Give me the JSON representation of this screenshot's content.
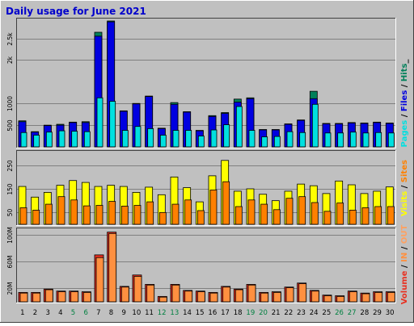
{
  "title": "Daily usage for June 2021",
  "colors": {
    "background": "#c0c0c0",
    "title": "#0000cc",
    "hits": "#00805a",
    "files": "#0000e0",
    "pages": "#00e0e0",
    "visits": "#ffff00",
    "sites": "#ff8000",
    "volume": "#e83020",
    "volume_in": "#ff9040",
    "volume_out": "#ffa060",
    "weekend": "#008040",
    "weekday": "#000000"
  },
  "chart_data": [
    {
      "type": "bar",
      "name": "hits-files-pages",
      "x": [
        1,
        2,
        3,
        4,
        5,
        6,
        7,
        8,
        9,
        10,
        11,
        12,
        13,
        14,
        15,
        16,
        17,
        18,
        19,
        20,
        21,
        22,
        23,
        24,
        25,
        26,
        27,
        28,
        29,
        30
      ],
      "ylim": [
        0,
        2900
      ],
      "yticks": [
        500,
        1000,
        2000,
        2500
      ],
      "ytick_labels": [
        "500",
        "1000",
        "2k",
        "2.5k"
      ],
      "legend": [
        "Pages",
        "Files",
        "Hits"
      ],
      "side_label": "Pages / Files / Hits_",
      "series": [
        {
          "name": "Hits",
          "values": [
            600,
            350,
            500,
            520,
            570,
            580,
            2640,
            2900,
            830,
            1000,
            1170,
            430,
            1020,
            810,
            380,
            720,
            790,
            1100,
            1130,
            400,
            400,
            530,
            620,
            1280,
            540,
            540,
            560,
            550,
            570,
            550
          ]
        },
        {
          "name": "Files",
          "values": [
            580,
            340,
            490,
            500,
            560,
            560,
            2550,
            2880,
            820,
            990,
            1160,
            420,
            980,
            800,
            370,
            700,
            770,
            1030,
            1110,
            390,
            390,
            520,
            610,
            1110,
            530,
            530,
            550,
            540,
            560,
            540
          ]
        },
        {
          "name": "Pages",
          "values": [
            330,
            270,
            340,
            370,
            360,
            350,
            1130,
            1050,
            380,
            470,
            420,
            270,
            380,
            380,
            250,
            390,
            510,
            930,
            380,
            230,
            240,
            350,
            330,
            980,
            320,
            320,
            340,
            320,
            330,
            320
          ]
        }
      ]
    },
    {
      "type": "bar",
      "name": "visits-sites",
      "x": [
        1,
        2,
        3,
        4,
        5,
        6,
        7,
        8,
        9,
        10,
        11,
        12,
        13,
        14,
        15,
        16,
        17,
        18,
        19,
        20,
        21,
        22,
        23,
        24,
        25,
        26,
        27,
        28,
        29,
        30
      ],
      "ylim": [
        0,
        300
      ],
      "yticks": [
        50,
        150,
        250
      ],
      "ytick_labels": [
        "50",
        "150",
        "250"
      ],
      "legend": [
        "Visits",
        "Sites"
      ],
      "side_label": "Visits / Sites",
      "series": [
        {
          "name": "Visits",
          "values": [
            160,
            115,
            135,
            165,
            185,
            177,
            160,
            165,
            160,
            135,
            157,
            125,
            200,
            155,
            95,
            205,
            270,
            140,
            150,
            127,
            100,
            140,
            170,
            163,
            130,
            183,
            167,
            130,
            140,
            158
          ]
        },
        {
          "name": "Sites",
          "values": [
            70,
            60,
            85,
            117,
            103,
            78,
            80,
            97,
            77,
            80,
            95,
            50,
            85,
            103,
            58,
            145,
            180,
            75,
            103,
            85,
            62,
            110,
            117,
            92,
            55,
            90,
            60,
            70,
            75,
            75
          ]
        }
      ]
    },
    {
      "type": "bar",
      "name": "volume",
      "x": [
        1,
        2,
        3,
        4,
        5,
        6,
        7,
        8,
        9,
        10,
        11,
        12,
        13,
        14,
        15,
        16,
        17,
        18,
        19,
        20,
        21,
        22,
        23,
        24,
        25,
        26,
        27,
        28,
        29,
        30
      ],
      "ylim": [
        0,
        106
      ],
      "yticks": [
        20,
        60,
        100
      ],
      "ytick_labels": [
        "20M",
        "60M",
        "100M"
      ],
      "legend": [
        "Volume",
        "IN",
        "OUT"
      ],
      "side_label": "Volume / IN / OUT",
      "series": [
        {
          "name": "Volume",
          "values": [
            14,
            14,
            19,
            16,
            16,
            15,
            70,
            104,
            23,
            40,
            26,
            8,
            26,
            17,
            16,
            14,
            23,
            19,
            26,
            14,
            15,
            22,
            28,
            17,
            10,
            9,
            16,
            13,
            15,
            15
          ]
        },
        {
          "name": "OUT",
          "values": [
            13,
            13,
            18,
            15,
            15,
            14,
            66,
            102,
            22,
            38,
            25,
            7,
            25,
            16,
            15,
            13,
            22,
            18,
            25,
            13,
            14,
            21,
            27,
            16,
            9,
            8,
            15,
            12,
            14,
            14
          ]
        }
      ]
    }
  ],
  "x_labels": [
    "1",
    "2",
    "3",
    "4",
    "5",
    "6",
    "7",
    "8",
    "9",
    "10",
    "11",
    "12",
    "13",
    "14",
    "15",
    "16",
    "17",
    "18",
    "19",
    "20",
    "21",
    "22",
    "23",
    "24",
    "25",
    "26",
    "27",
    "28",
    "29",
    "30"
  ],
  "weekend_days": [
    5,
    6,
    12,
    13,
    19,
    20,
    26,
    27
  ]
}
